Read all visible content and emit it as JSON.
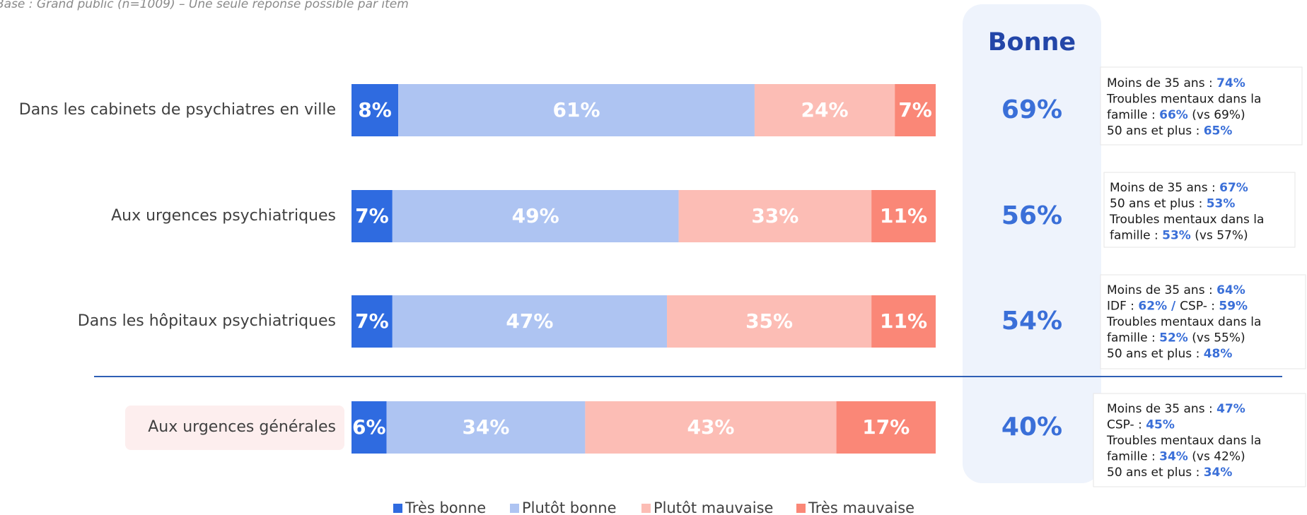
{
  "chart_data": {
    "type": "stacked-bar-horizontal",
    "subtitle": "Base : Grand public (n=1009) – Une seule réponse possible par item",
    "categories": [
      "Dans les cabinets de psychiatres en ville",
      "Aux urgences psychiatriques",
      "Dans les hôpitaux psychiatriques",
      "Aux urgences générales"
    ],
    "xlim": [
      0,
      100
    ],
    "series": [
      {
        "name": "Très bonne",
        "color": "#2f6be0",
        "values": [
          8,
          7,
          7,
          6
        ],
        "value_labels": [
          "8%",
          "7%",
          "7%",
          "6%"
        ]
      },
      {
        "name": "Plutôt bonne",
        "color": "#aec4f2",
        "values": [
          61,
          49,
          47,
          34
        ],
        "value_labels": [
          "61%",
          "49%",
          "47%",
          "34%"
        ]
      },
      {
        "name": "Plutôt mauvaise",
        "color": "#fcbdb5",
        "values": [
          24,
          33,
          35,
          43
        ],
        "value_labels": [
          "24%",
          "33%",
          "35%",
          "43%"
        ]
      },
      {
        "name": "Très mauvaise",
        "color": "#fa8777",
        "values": [
          7,
          11,
          11,
          17
        ],
        "value_labels": [
          "7%",
          "11%",
          "11%",
          "17%"
        ]
      }
    ],
    "summary": {
      "title": "Bonne",
      "values": [
        69,
        56,
        54,
        40
      ],
      "value_labels": [
        "69%",
        "56%",
        "54%",
        "40%"
      ]
    },
    "notes": [
      [
        [
          {
            "text": "Moins de 35 ans : "
          },
          {
            "text": "74%",
            "bold": true
          }
        ],
        [
          {
            "text": "Troubles mentaux dans la"
          }
        ],
        [
          {
            "text": "famille : "
          },
          {
            "text": "66%",
            "bold": true
          },
          {
            "text": " (vs 69%)"
          }
        ],
        [
          {
            "text": "50 ans et plus : "
          },
          {
            "text": "65%",
            "bold": true
          }
        ]
      ],
      [
        [
          {
            "text": "Moins de 35 ans : "
          },
          {
            "text": "67%",
            "bold": true
          }
        ],
        [
          {
            "text": "50 ans et plus : "
          },
          {
            "text": "53%",
            "bold": true
          }
        ],
        [
          {
            "text": "Troubles mentaux dans la"
          }
        ],
        [
          {
            "text": "famille : "
          },
          {
            "text": "53%",
            "bold": true
          },
          {
            "text": " (vs 57%)"
          }
        ]
      ],
      [
        [
          {
            "text": "Moins de 35 ans : "
          },
          {
            "text": "64%",
            "bold": true
          }
        ],
        [
          {
            "text": "IDF : "
          },
          {
            "text": "62% / ",
            "bold": true
          },
          {
            "text": "CSP- : "
          },
          {
            "text": "59%",
            "bold": true
          }
        ],
        [
          {
            "text": "Troubles mentaux dans la"
          }
        ],
        [
          {
            "text": "famille : "
          },
          {
            "text": "52%",
            "bold": true
          },
          {
            "text": " (vs 55%)"
          }
        ],
        [
          {
            "text": "50 ans et plus : "
          },
          {
            "text": "48%",
            "bold": true
          }
        ]
      ],
      [
        [
          {
            "text": "Moins de 35 ans : "
          },
          {
            "text": "47%",
            "bold": true
          }
        ],
        [
          {
            "text": "CSP- : "
          },
          {
            "text": "45%",
            "bold": true
          }
        ],
        [
          {
            "text": "Troubles mentaux dans la"
          }
        ],
        [
          {
            "text": "famille : "
          },
          {
            "text": "34%",
            "bold": true
          },
          {
            "text": " (vs 42%)"
          }
        ],
        [
          {
            "text": "50 ans et plus : "
          },
          {
            "text": "34%",
            "bold": true
          }
        ]
      ]
    ]
  }
}
